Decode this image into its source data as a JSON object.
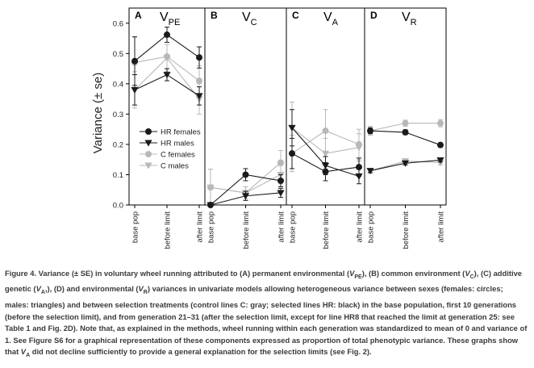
{
  "figure": {
    "ylabel": "Variance (± se)",
    "yticks": [
      "0.0",
      "0.1",
      "0.2",
      "0.3",
      "0.4",
      "0.5",
      "0.6"
    ],
    "xticks": [
      "base pop",
      "before limit",
      "after limit"
    ]
  },
  "legend": {
    "hr_females": "HR females",
    "hr_males": "HR males",
    "c_females": "C females",
    "c_males": "C males"
  },
  "colors": {
    "hr": "#1a1a1a",
    "c": "#b8b8b8"
  },
  "chart_data": [
    {
      "type": "line",
      "panel": "A",
      "title": "V",
      "title_sub": "PE",
      "categories": [
        "base pop",
        "before limit",
        "after limit"
      ],
      "ylim": [
        0,
        0.65
      ],
      "series": [
        {
          "name": "HR females",
          "values": [
            0.475,
            0.562,
            0.487
          ],
          "se": [
            0.08,
            0.025,
            0.035
          ]
        },
        {
          "name": "HR males",
          "values": [
            0.38,
            0.43,
            0.36
          ],
          "se": [
            0.05,
            0.02,
            0.03
          ]
        },
        {
          "name": "C females",
          "values": [
            0.47,
            0.49,
            0.41
          ],
          "se": [
            0.085,
            0.04,
            0.05
          ]
        },
        {
          "name": "C males",
          "values": [
            0.38,
            0.485,
            0.35
          ],
          "se": [
            0.06,
            0.045,
            0.05
          ]
        }
      ]
    },
    {
      "type": "line",
      "panel": "B",
      "title": "V",
      "title_sub": "C",
      "categories": [
        "base pop",
        "before limit",
        "after limit"
      ],
      "ylim": [
        0,
        0.65
      ],
      "series": [
        {
          "name": "HR females",
          "values": [
            0.0,
            0.1,
            0.08
          ],
          "se": [
            0.0,
            0.02,
            0.02
          ]
        },
        {
          "name": "HR males",
          "values": [
            0.0,
            0.03,
            0.04
          ],
          "se": [
            0.0,
            0.015,
            0.015
          ]
        },
        {
          "name": "C females",
          "values": [
            0.058,
            0.04,
            0.14
          ],
          "se": [
            0.06,
            0.02,
            0.04
          ]
        },
        {
          "name": "C males",
          "values": [
            0.058,
            0.04,
            0.1
          ],
          "se": [
            0.06,
            0.02,
            0.03
          ]
        }
      ]
    },
    {
      "type": "line",
      "panel": "C",
      "title": "V",
      "title_sub": "A",
      "categories": [
        "base pop",
        "before limit",
        "after limit"
      ],
      "ylim": [
        0,
        0.65
      ],
      "series": [
        {
          "name": "HR females",
          "values": [
            0.17,
            0.11,
            0.125
          ],
          "se": [
            0.05,
            0.03,
            0.03
          ]
        },
        {
          "name": "HR males",
          "values": [
            0.255,
            0.13,
            0.095
          ],
          "se": [
            0.06,
            0.03,
            0.025
          ]
        },
        {
          "name": "C females",
          "values": [
            0.17,
            0.245,
            0.2
          ],
          "se": [
            0.06,
            0.07,
            0.05
          ]
        },
        {
          "name": "C males",
          "values": [
            0.255,
            0.17,
            0.19
          ],
          "se": [
            0.085,
            0.05,
            0.045
          ]
        }
      ]
    },
    {
      "type": "line",
      "panel": "D",
      "title": "V",
      "title_sub": "R",
      "categories": [
        "base pop",
        "before limit",
        "after limit"
      ],
      "ylim": [
        0,
        0.65
      ],
      "series": [
        {
          "name": "HR females",
          "values": [
            0.245,
            0.24,
            0.198
          ],
          "se": [
            0.01,
            0.008,
            0.007
          ]
        },
        {
          "name": "HR males",
          "values": [
            0.113,
            0.138,
            0.148
          ],
          "se": [
            0.006,
            0.006,
            0.006
          ]
        },
        {
          "name": "C females",
          "values": [
            0.245,
            0.27,
            0.27
          ],
          "se": [
            0.015,
            0.01,
            0.012
          ]
        },
        {
          "name": "C males",
          "values": [
            0.113,
            0.145,
            0.14
          ],
          "se": [
            0.008,
            0.007,
            0.008
          ]
        }
      ]
    }
  ],
  "caption": {
    "label": "Figure 4.",
    "p1": " Variance (± SE) in voluntary wheel running attributed to (A) permanent environmental (",
    "s1v": "V",
    "s1": "PE",
    "p2": "), (B) common environment (",
    "s2v": "V",
    "s2": "C",
    "p3": "), (C) additive genetic (",
    "s3v": "V",
    "s3": "A",
    "p4": ",), (D) and environmental (",
    "s4v": "V",
    "s4": "R",
    "p5": ") variances in univariate models allowing heterogeneous variance between sexes (females: circles; males: triangles) and between selection treatments (control lines C: gray; selected lines HR: black) in the base population, first 10 generations (before the selection limit), and from generation 21–31 (after the selection limit, except for line HR8 that reached the limit at generation 25: see Table 1 and Fig. 2D). Note that, as explained in the methods, wheel running within each generation was standardized to mean of 0 and variance of 1. See Figure S6 for a graphical representation of these components expressed as proportion of total phenotypic variance. These graphs show that ",
    "s5v": "V",
    "s5": "A",
    "p6": " did not decline sufficiently to provide a general explanation for the selection limits (see Fig. 2)."
  }
}
